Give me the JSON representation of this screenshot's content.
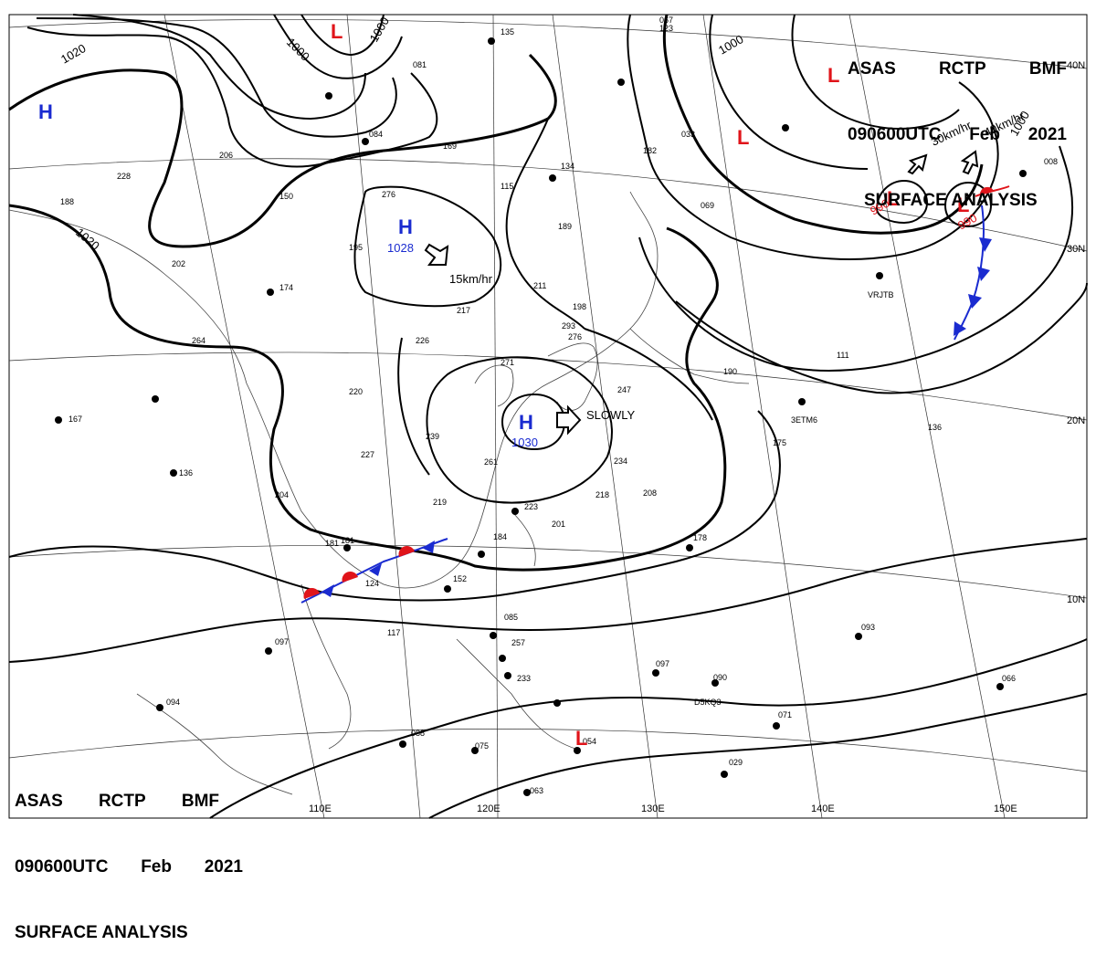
{
  "header": {
    "agency_line": [
      "ASAS",
      "RCTP",
      "BMF"
    ],
    "time_line": [
      "090600UTC",
      "Feb",
      "2021"
    ],
    "title": "SURFACE ANALYSIS"
  },
  "isobar_labels": [
    "1020",
    "1000",
    "1000",
    "1020",
    "1000",
    "1000"
  ],
  "lat_labels": [
    "40N",
    "30N",
    "20N",
    "10N"
  ],
  "lon_labels": [
    "110E",
    "120E",
    "130E",
    "140E",
    "150E"
  ],
  "systems": {
    "high_west": {
      "type": "H",
      "value": ""
    },
    "high_north": {
      "type": "H",
      "value": "1028",
      "motion": "15km/hr"
    },
    "high_center": {
      "type": "H",
      "value": "1030",
      "motion": "SLOWLY"
    },
    "low_west_top": {
      "type": "L"
    },
    "low_east_top": {
      "type": "L"
    },
    "low_east_1": {
      "type": "L",
      "value": "990",
      "motion": "30km/hr"
    },
    "low_east_2": {
      "type": "L",
      "value": "990",
      "motion": "40km/hr"
    },
    "low_south": {
      "type": "L"
    },
    "low_header": {
      "type": "L"
    }
  },
  "ship_callsigns": [
    "VRJTB",
    "3ETM6",
    "D5KQ3"
  ],
  "station_numbers": [
    "228",
    "188",
    "150",
    "276",
    "202",
    "174",
    "198",
    "264",
    "195",
    "217",
    "226",
    "220",
    "167",
    "136",
    "204",
    "227",
    "239",
    "219",
    "181",
    "124",
    "117",
    "097",
    "094",
    "088",
    "075",
    "063",
    "054",
    "152",
    "184",
    "223",
    "201",
    "097",
    "090",
    "071",
    "093",
    "066",
    "029",
    "178",
    "208",
    "234",
    "218",
    "247",
    "261",
    "271",
    "276",
    "293",
    "211",
    "189",
    "134",
    "115",
    "169",
    "084",
    "081",
    "135",
    "206",
    "111",
    "190",
    "136",
    "175",
    "008",
    "033",
    "069",
    "123",
    "067",
    "085",
    "257",
    "233",
    "182",
    "181"
  ],
  "colors": {
    "high": "#1a2bd0",
    "low": "#e0141a",
    "cold_front": "#1a2bd0",
    "warm_front": "#e0141a",
    "isobar": "#000000"
  }
}
